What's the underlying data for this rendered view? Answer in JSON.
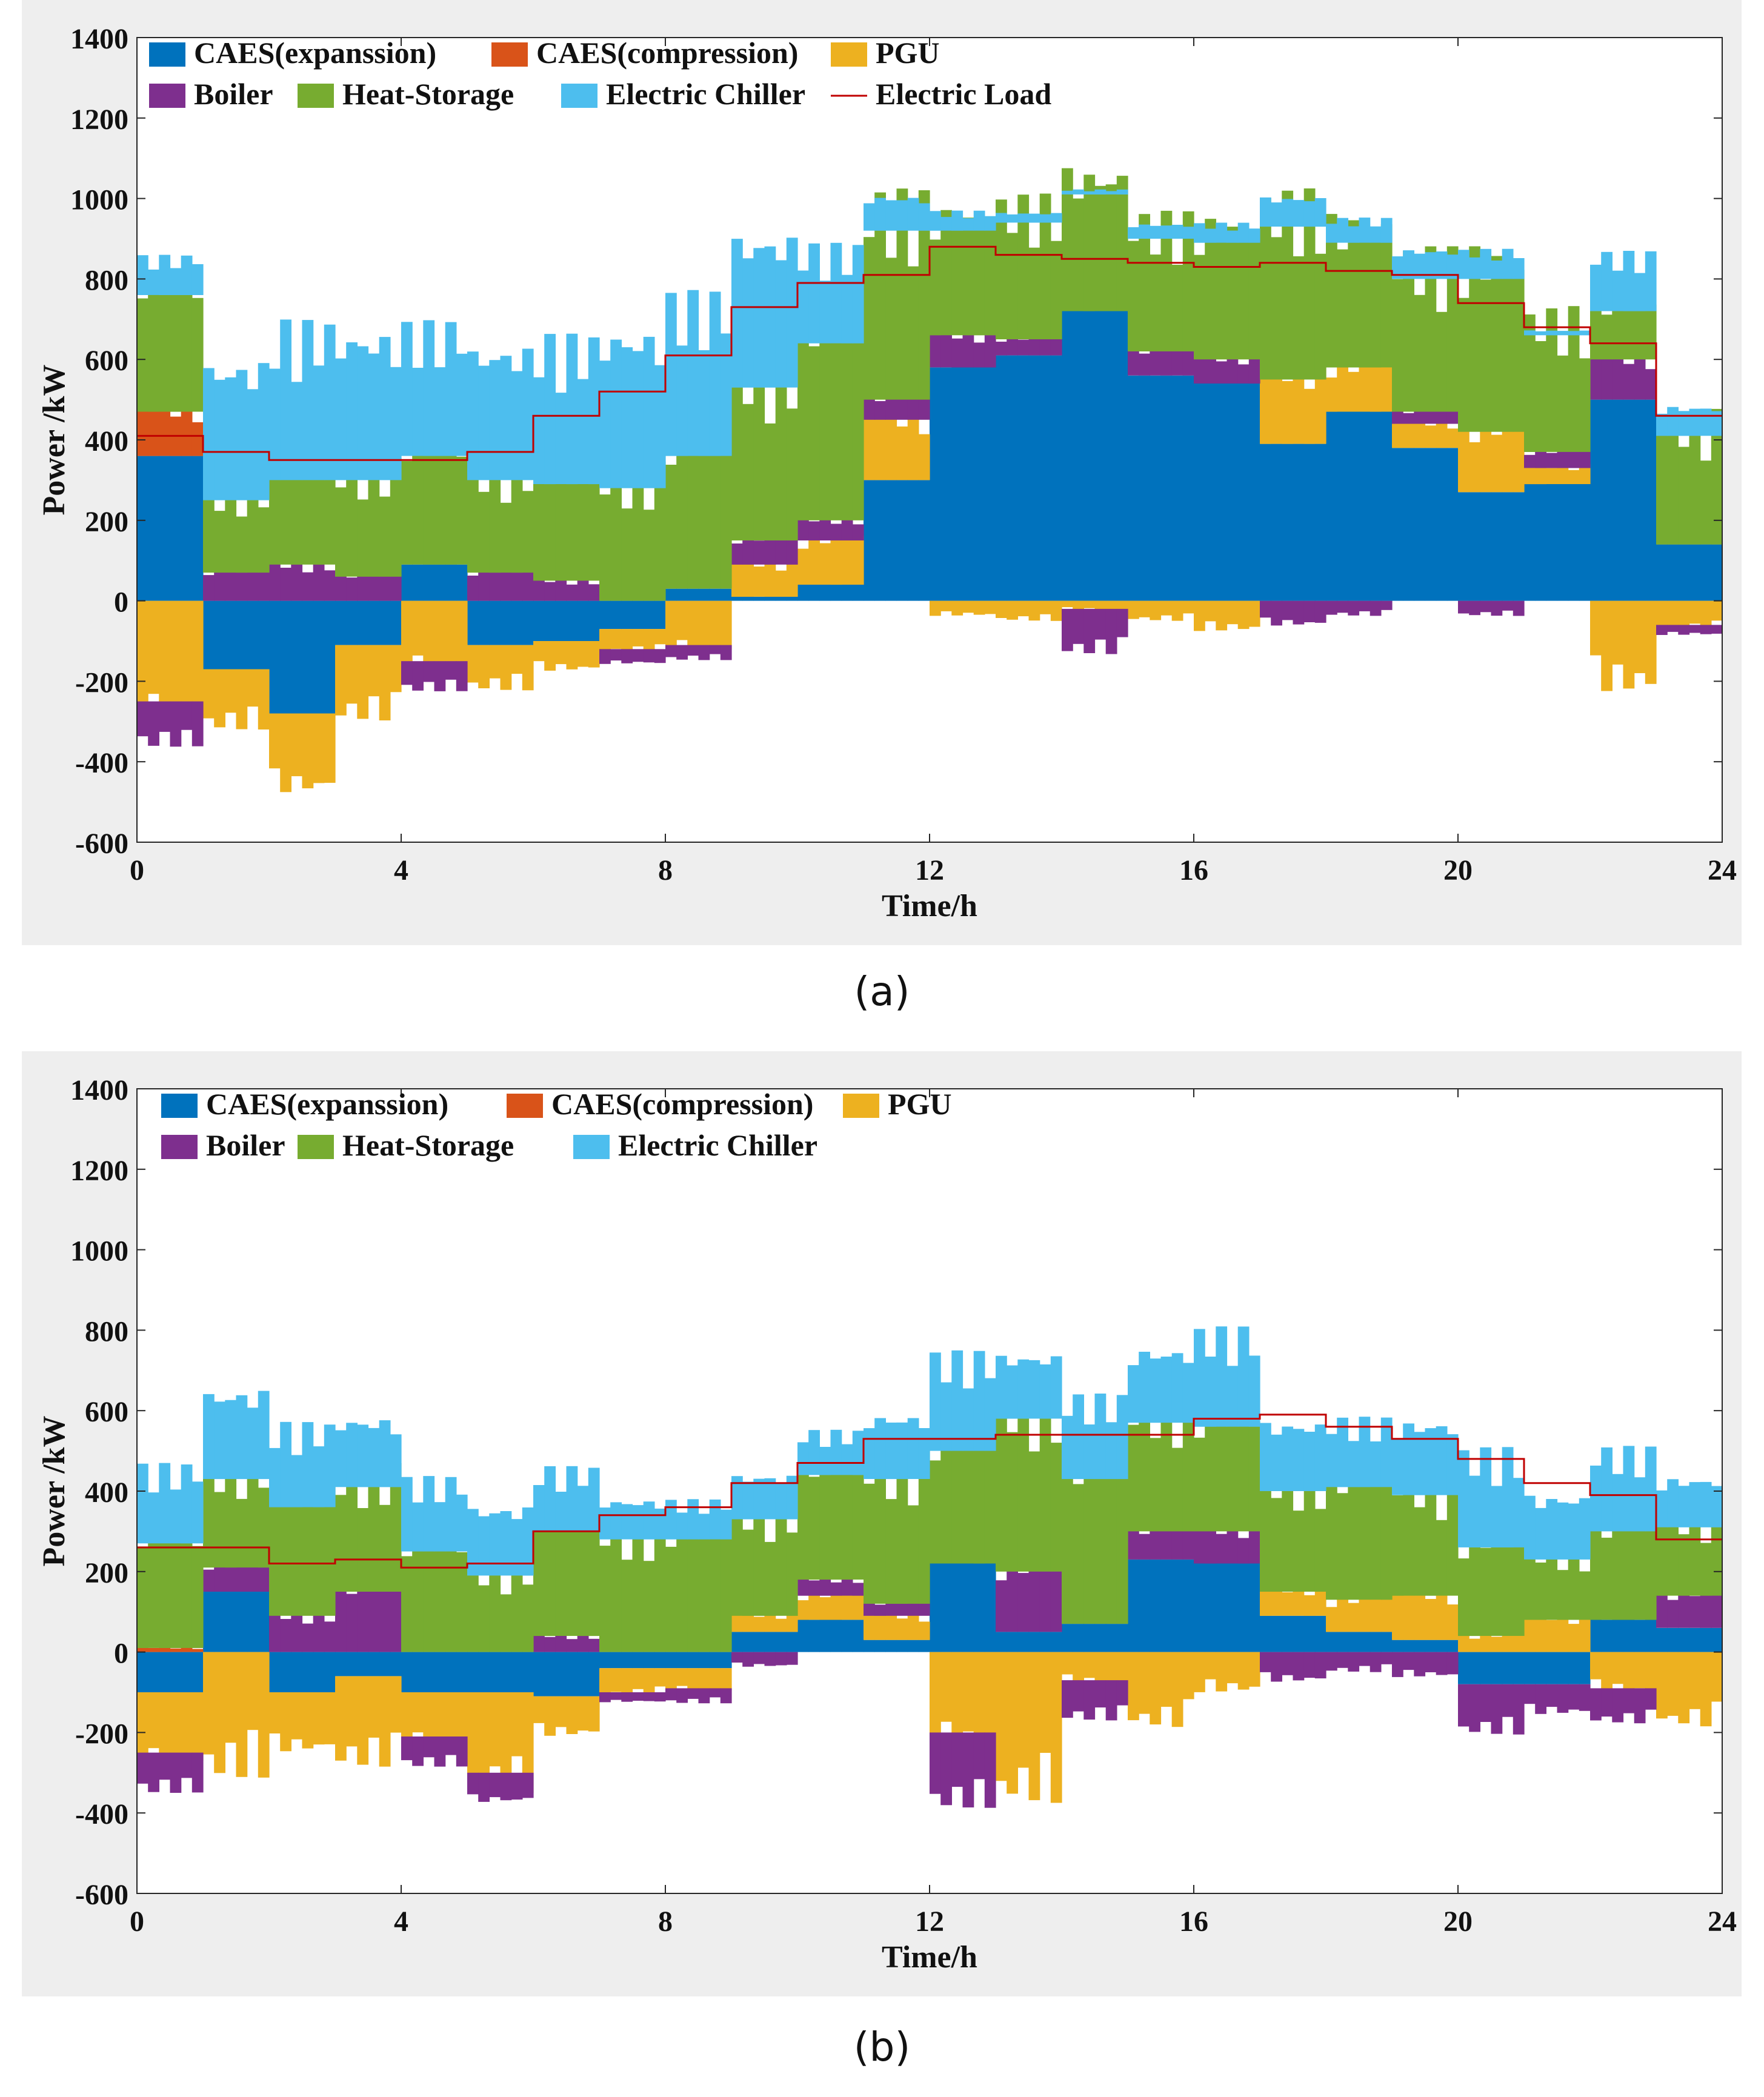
{
  "chart_data": [
    {
      "type": "area",
      "panel": "a",
      "caption": "(a)",
      "xlabel": "Time/h",
      "ylabel": "Power /kW",
      "xlim": [
        0,
        24
      ],
      "ylim": [
        -600,
        1400
      ],
      "xticks": [
        "0",
        "4",
        "8",
        "12",
        "16",
        "20",
        "24"
      ],
      "yticks": [
        "-600",
        "-400",
        "-200",
        "0",
        "200",
        "400",
        "600",
        "800",
        "1000",
        "1200",
        "1400"
      ],
      "legend": [
        {
          "name": "CAES(expanssion)",
          "color": "#0072bd",
          "kind": "patch"
        },
        {
          "name": "CAES(compression)",
          "color": "#d95319",
          "kind": "patch"
        },
        {
          "name": "PGU",
          "color": "#edb120",
          "kind": "patch"
        },
        {
          "name": "Boiler",
          "color": "#7e2f8e",
          "kind": "patch"
        },
        {
          "name": "Heat-Storage",
          "color": "#77ac30",
          "kind": "patch"
        },
        {
          "name": "Electric Chiller",
          "color": "#4dbeee",
          "kind": "patch"
        },
        {
          "name": "Electric Load",
          "color": "#c00000",
          "kind": "line"
        }
      ],
      "hours": [
        0,
        1,
        2,
        3,
        4,
        5,
        6,
        7,
        8,
        9,
        10,
        11,
        12,
        13,
        14,
        15,
        16,
        17,
        18,
        19,
        20,
        21,
        22,
        23,
        24
      ],
      "series": [
        {
          "name": "CAES(expanssion)",
          "color": "#0072bd",
          "values": [
            360,
            -170,
            -280,
            -110,
            90,
            -110,
            -100,
            -70,
            30,
            10,
            40,
            300,
            580,
            610,
            720,
            560,
            540,
            390,
            470,
            380,
            270,
            290,
            500,
            140
          ]
        },
        {
          "name": "CAES(compression)",
          "color": "#d95319",
          "values": [
            110,
            0,
            0,
            0,
            0,
            0,
            0,
            0,
            0,
            0,
            0,
            0,
            0,
            0,
            0,
            0,
            0,
            0,
            0,
            0,
            0,
            0,
            0,
            0
          ]
        },
        {
          "name": "PGU",
          "color": "#edb120",
          "values": [
            -250,
            -120,
            -160,
            -150,
            -150,
            -90,
            -60,
            -50,
            -110,
            80,
            110,
            150,
            -30,
            -40,
            -20,
            -40,
            -60,
            160,
            110,
            60,
            150,
            40,
            -180,
            -60
          ]
        },
        {
          "name": "Boiler",
          "color": "#7e2f8e",
          "values": [
            -90,
            70,
            90,
            60,
            -60,
            70,
            50,
            -30,
            -30,
            60,
            50,
            50,
            80,
            40,
            -90,
            60,
            60,
            -50,
            -30,
            30,
            -30,
            40,
            100,
            -20
          ]
        },
        {
          "name": "Heat-Storage",
          "color": "#77ac30",
          "values": [
            290,
            180,
            210,
            240,
            270,
            230,
            240,
            280,
            330,
            380,
            440,
            420,
            260,
            290,
            290,
            280,
            290,
            380,
            310,
            330,
            380,
            290,
            120,
            270
          ]
        },
        {
          "name": "Electric Chiller",
          "color": "#4dbeee",
          "values": [
            80,
            280,
            320,
            300,
            270,
            270,
            300,
            320,
            330,
            310,
            200,
            70,
            40,
            20,
            10,
            30,
            40,
            60,
            50,
            60,
            60,
            10,
            120,
            60
          ]
        }
      ],
      "electric_load": [
        410,
        370,
        350,
        350,
        350,
        370,
        460,
        520,
        610,
        730,
        790,
        810,
        880,
        860,
        850,
        840,
        830,
        840,
        820,
        810,
        740,
        680,
        640,
        460
      ]
    },
    {
      "type": "area",
      "panel": "b",
      "caption": "(b)",
      "xlabel": "Time/h",
      "ylabel": "Power /kW",
      "xlim": [
        0,
        24
      ],
      "ylim": [
        -600,
        1400
      ],
      "xticks": [
        "0",
        "4",
        "8",
        "12",
        "16",
        "20",
        "24"
      ],
      "yticks": [
        "-600",
        "-400",
        "-200",
        "0",
        "200",
        "400",
        "600",
        "800",
        "1000",
        "1200",
        "1400"
      ],
      "legend": [
        {
          "name": "CAES(expanssion)",
          "color": "#0072bd",
          "kind": "patch"
        },
        {
          "name": "CAES(compression)",
          "color": "#d95319",
          "kind": "patch"
        },
        {
          "name": "PGU",
          "color": "#edb120",
          "kind": "patch"
        },
        {
          "name": "Boiler",
          "color": "#7e2f8e",
          "kind": "patch"
        },
        {
          "name": "Heat-Storage",
          "color": "#77ac30",
          "kind": "patch"
        },
        {
          "name": "Electric Chiller",
          "color": "#4dbeee",
          "kind": "patch"
        }
      ],
      "hours": [
        0,
        1,
        2,
        3,
        4,
        5,
        6,
        7,
        8,
        9,
        10,
        11,
        12,
        13,
        14,
        15,
        16,
        17,
        18,
        19,
        20,
        21,
        22,
        23,
        24
      ],
      "series": [
        {
          "name": "CAES(expanssion)",
          "color": "#0072bd",
          "values": [
            -100,
            150,
            -100,
            -60,
            -100,
            -100,
            -110,
            -40,
            -40,
            50,
            80,
            30,
            220,
            50,
            70,
            230,
            220,
            90,
            50,
            30,
            -80,
            -80,
            80,
            60
          ]
        },
        {
          "name": "CAES(compression)",
          "color": "#d95319",
          "values": [
            10,
            0,
            0,
            0,
            0,
            0,
            0,
            0,
            0,
            0,
            0,
            0,
            0,
            0,
            0,
            0,
            0,
            0,
            0,
            0,
            0,
            0,
            0,
            0
          ]
        },
        {
          "name": "PGU",
          "color": "#edb120",
          "values": [
            -150,
            -250,
            -120,
            -180,
            -110,
            -200,
            -80,
            -60,
            -50,
            40,
            60,
            60,
            -200,
            -300,
            -70,
            -150,
            -80,
            60,
            80,
            110,
            40,
            80,
            -90,
            -150
          ]
        },
        {
          "name": "Boiler",
          "color": "#7e2f8e",
          "values": [
            -80,
            60,
            90,
            150,
            -60,
            -60,
            40,
            -20,
            -30,
            -30,
            40,
            30,
            -150,
            150,
            -80,
            70,
            80,
            -60,
            -40,
            -50,
            -100,
            -60,
            -70,
            80
          ]
        },
        {
          "name": "Heat-Storage",
          "color": "#77ac30",
          "values": [
            260,
            220,
            270,
            260,
            250,
            190,
            260,
            280,
            280,
            240,
            260,
            310,
            280,
            380,
            360,
            270,
            260,
            250,
            280,
            250,
            220,
            150,
            220,
            170
          ]
        },
        {
          "name": "Electric Chiller",
          "color": "#4dbeee",
          "values": [
            160,
            180,
            170,
            140,
            150,
            140,
            130,
            80,
            80,
            90,
            90,
            130,
            200,
            130,
            170,
            150,
            200,
            140,
            140,
            150,
            200,
            130,
            170,
            100
          ]
        }
      ],
      "electric_load": [
        260,
        260,
        220,
        230,
        210,
        220,
        300,
        340,
        360,
        420,
        470,
        530,
        530,
        540,
        540,
        540,
        580,
        590,
        560,
        530,
        480,
        420,
        390,
        280
      ]
    }
  ]
}
